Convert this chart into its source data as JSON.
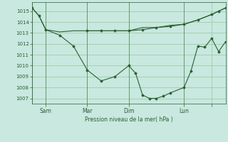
{
  "bg_color": "#c8e8e0",
  "grid_color": "#98c898",
  "line_color": "#2a6030",
  "marker_color": "#2a6030",
  "xlabel": "Pression niveau de la mer( hPa )",
  "ylim": [
    1006.5,
    1015.8
  ],
  "yticks": [
    1007,
    1008,
    1009,
    1010,
    1011,
    1012,
    1013,
    1014,
    1015
  ],
  "xlim": [
    0,
    56
  ],
  "xtick_positions": [
    4,
    16,
    28,
    44,
    52
  ],
  "xtick_labels": [
    "Sam",
    "Mar",
    "Dim",
    "Lun",
    ""
  ],
  "vline_positions": [
    0,
    4,
    16,
    28,
    44
  ],
  "series1_x": [
    0,
    2,
    4,
    8,
    12,
    16,
    20,
    24,
    28,
    32,
    36,
    40,
    44,
    48,
    52,
    54,
    56
  ],
  "series1_y": [
    1015.3,
    1014.6,
    1013.3,
    1013.1,
    1013.2,
    1013.2,
    1013.2,
    1013.2,
    1013.2,
    1013.5,
    1013.5,
    1013.7,
    1013.8,
    1014.2,
    1014.7,
    1015.0,
    1015.3
  ],
  "series2_x": [
    0,
    2,
    4,
    8,
    12,
    16,
    20,
    24,
    28,
    30,
    32,
    34,
    36,
    38,
    40,
    44,
    46,
    48,
    50,
    52,
    54,
    56
  ],
  "series2_y": [
    1015.3,
    1014.6,
    1013.3,
    1012.8,
    1011.8,
    1009.6,
    1008.6,
    1009.0,
    1010.0,
    1009.3,
    1007.3,
    1007.0,
    1007.0,
    1007.2,
    1007.5,
    1008.0,
    1009.5,
    1011.8,
    1011.7,
    1012.5,
    1011.3,
    1012.2
  ],
  "series3_x": [
    16,
    20,
    24,
    28,
    32,
    36,
    40,
    44,
    48,
    52,
    54,
    56
  ],
  "series3_y": [
    1013.2,
    1013.2,
    1013.2,
    1013.2,
    1013.3,
    1013.5,
    1013.6,
    1013.8,
    1014.2,
    1014.7,
    1015.0,
    1015.3
  ]
}
